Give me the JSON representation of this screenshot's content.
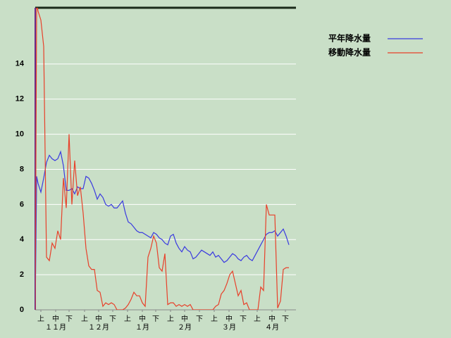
{
  "chart_data": {
    "type": "line",
    "x": [
      0,
      1,
      2,
      4,
      6,
      8,
      10,
      12,
      14,
      16,
      18,
      20,
      22,
      24,
      26,
      28,
      30,
      32,
      34,
      36,
      38,
      40,
      42,
      44,
      46,
      48,
      50,
      52,
      54,
      56,
      58,
      60,
      62,
      64,
      66,
      68,
      70,
      72,
      74,
      76,
      78,
      80,
      82,
      84,
      86,
      88,
      90,
      92,
      94,
      96,
      98,
      100,
      102,
      104,
      106,
      108,
      110,
      112,
      114,
      116,
      118,
      120,
      122,
      124,
      126,
      128,
      130,
      132,
      134,
      136,
      138,
      140,
      142,
      144,
      146,
      148,
      150,
      152,
      154,
      156,
      158,
      160,
      162,
      164,
      166,
      168,
      170,
      172,
      174,
      176,
      178,
      180
    ],
    "series": [
      {
        "name": "平年降水量",
        "color": "#3a3ae0",
        "values": [
          0,
          7.6,
          7.2,
          6.7,
          7.5,
          8.4,
          8.8,
          8.6,
          8.5,
          8.6,
          9.0,
          8.2,
          6.8,
          6.8,
          6.9,
          6.6,
          7.0,
          6.9,
          6.9,
          7.6,
          7.5,
          7.2,
          6.8,
          6.3,
          6.6,
          6.4,
          6.0,
          5.9,
          6.0,
          5.8,
          5.8,
          6.0,
          6.2,
          5.5,
          5.0,
          4.9,
          4.7,
          4.5,
          4.4,
          4.4,
          4.3,
          4.2,
          4.1,
          4.4,
          4.3,
          4.1,
          4.0,
          3.8,
          3.7,
          4.2,
          4.3,
          3.8,
          3.5,
          3.3,
          3.6,
          3.4,
          3.3,
          2.9,
          3.0,
          3.2,
          3.4,
          3.3,
          3.2,
          3.1,
          3.3,
          3.0,
          3.1,
          2.9,
          2.7,
          2.8,
          3.0,
          3.2,
          3.1,
          2.9,
          2.8,
          3.0,
          3.1,
          2.9,
          2.8,
          3.1,
          3.4,
          3.7,
          4.0,
          4.3,
          4.4,
          4.4,
          4.5,
          4.2,
          4.4,
          4.6,
          4.2,
          3.7
        ]
      },
      {
        "name": "移動降水量",
        "color": "#e8402a",
        "values": [
          0,
          17.5,
          17,
          16.5,
          15,
          3,
          2.8,
          3.8,
          3.5,
          4.5,
          4,
          7.5,
          5.8,
          10,
          6,
          8.5,
          6.5,
          7,
          5.5,
          3.5,
          2.5,
          2.3,
          2.3,
          1.1,
          1.0,
          0.2,
          0.4,
          0.3,
          0.4,
          0.3,
          0,
          0,
          0,
          0.1,
          0.3,
          0.6,
          1.0,
          0.8,
          0.8,
          0.4,
          0.2,
          3.0,
          3.5,
          4.2,
          3.8,
          2.4,
          2.2,
          3.2,
          0.3,
          0.4,
          0.4,
          0.2,
          0.3,
          0.2,
          0.3,
          0.2,
          0.3,
          0,
          0,
          0,
          0,
          0,
          0,
          0,
          0,
          0.2,
          0.3,
          0.9,
          1.1,
          1.5,
          2.0,
          2.2,
          1.5,
          0.8,
          1.1,
          0.3,
          0.4,
          0,
          0,
          0,
          0,
          1.3,
          1.1,
          6.0,
          5.4,
          5.4,
          5.4,
          0.1,
          0.5,
          2.3,
          2.4,
          2.4
        ]
      }
    ],
    "xlim": [
      0,
      185
    ],
    "xticks": [
      {
        "value": 4,
        "label": "上"
      },
      {
        "value": 14.5,
        "label": "中"
      },
      {
        "value": 24,
        "label": "下"
      },
      {
        "value": 35,
        "label": "上"
      },
      {
        "value": 45,
        "label": "中"
      },
      {
        "value": 55,
        "label": "下"
      },
      {
        "value": 65.5,
        "label": "上"
      },
      {
        "value": 76,
        "label": "中"
      },
      {
        "value": 85.5,
        "label": "下"
      },
      {
        "value": 96,
        "label": "上"
      },
      {
        "value": 106,
        "label": "中"
      },
      {
        "value": 116.5,
        "label": "下"
      },
      {
        "value": 127,
        "label": "上"
      },
      {
        "value": 137.5,
        "label": "中"
      },
      {
        "value": 147.5,
        "label": "下"
      },
      {
        "value": 157.5,
        "label": "上"
      },
      {
        "value": 168,
        "label": "中"
      },
      {
        "value": 177.5,
        "label": "下"
      }
    ],
    "month_labels": [
      {
        "value": 14.5,
        "label": "１１月"
      },
      {
        "value": 45,
        "label": "１２月"
      },
      {
        "value": 76,
        "label": "１月"
      },
      {
        "value": 106,
        "label": "２月"
      },
      {
        "value": 137.5,
        "label": "３月"
      },
      {
        "value": 168,
        "label": "４月"
      }
    ],
    "ylim": [
      0,
      17.2
    ],
    "yticks": [
      0,
      2,
      4,
      6,
      8,
      10,
      12,
      14
    ],
    "grid": true,
    "legend": "top-right"
  }
}
